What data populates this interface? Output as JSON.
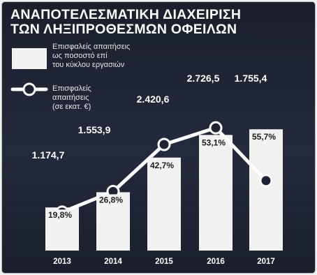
{
  "title_line1": "ΑΝΑΠΟΤΕΛΕΣΜΑΤΙΚΗ ΔΙΑΧΕΙΡΙΣΗ",
  "title_line2": "ΤΩΝ ΛΗΞΙΠΡΟΘΕΣΜΩΝ ΟΦΕΙΛΩΝ",
  "legend": {
    "bar_lines": [
      "Επισφαλείς απαιτήσεις",
      "ως ποσοστό επί",
      "του κύκλου εργασιών"
    ],
    "line_lines": [
      "Επισφαλείς",
      "απαιτήσεις",
      "(σε εκατ. €)"
    ]
  },
  "colors": {
    "background": "#1e2433",
    "bar": "#f1f1f1",
    "line": "#ffffff"
  },
  "chart_data": {
    "type": "bar",
    "categories": [
      "2013",
      "2014",
      "2015",
      "2016",
      "2017"
    ],
    "series": [
      {
        "type": "bar",
        "values": [
          19.8,
          26.8,
          42.7,
          53.1,
          55.7
        ],
        "labels": [
          "19,8%",
          "26,8%",
          "42,7%",
          "53,1%",
          "55,7%"
        ]
      },
      {
        "type": "line",
        "values": [
          1174.7,
          1553.9,
          2420.6,
          2726.5,
          1755.4
        ],
        "labels": [
          "1.174,7",
          "1.553,9",
          "2.420,6",
          "2.726,5",
          "1.755,4"
        ]
      }
    ],
    "grid": false
  }
}
